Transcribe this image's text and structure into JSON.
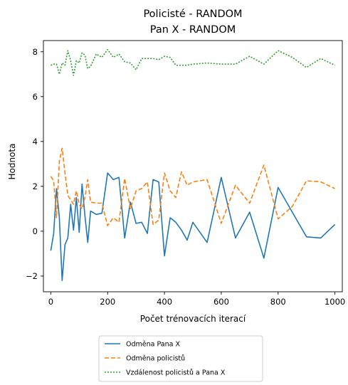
{
  "chart_data": {
    "type": "line",
    "title": "Policisté - RANDOM",
    "subtitle": "Pan X - RANDOM",
    "xlabel": "Počet trénovacích iterací",
    "ylabel": "Hodnota",
    "xlim": [
      -26,
      1026
    ],
    "ylim": [
      -2.7,
      8.5
    ],
    "xticks": [
      0,
      200,
      400,
      600,
      800,
      1000
    ],
    "xtick_labels": [
      "0",
      "200",
      "400",
      "600",
      "800",
      "1000"
    ],
    "yticks": [
      -2,
      0,
      2,
      4,
      6,
      8
    ],
    "ytick_labels": [
      "−2",
      "0",
      "2",
      "4",
      "6",
      "8"
    ],
    "grid": false,
    "legend_position": "below-center",
    "series": [
      {
        "name": "Odměna Pana X",
        "color": "#1f77b4",
        "dash": "solid",
        "x": [
          0,
          10,
          20,
          30,
          40,
          50,
          60,
          70,
          80,
          90,
          100,
          110,
          120,
          130,
          140,
          160,
          180,
          200,
          220,
          240,
          260,
          280,
          300,
          320,
          340,
          360,
          380,
          400,
          420,
          440,
          460,
          480,
          500,
          550,
          600,
          650,
          700,
          750,
          800,
          850,
          900,
          950,
          1000
        ],
        "y": [
          -0.87,
          -0.1,
          1.9,
          0.6,
          -2.2,
          -0.6,
          -0.3,
          1.2,
          0.05,
          1.5,
          -0.05,
          2.1,
          0.7,
          -0.5,
          0.9,
          0.75,
          0.8,
          2.6,
          2.3,
          2.4,
          -0.3,
          1.3,
          0.35,
          0.4,
          -0.1,
          2.3,
          2.2,
          -1.1,
          0.6,
          0.4,
          0.05,
          -0.4,
          0.4,
          -0.5,
          2.4,
          -0.3,
          0.85,
          -1.2,
          1.95,
          0.85,
          -0.25,
          -0.3,
          0.3
        ]
      },
      {
        "name": "Odměna policistů",
        "color": "#ff7f0e",
        "dash": "dashed",
        "x": [
          0,
          10,
          20,
          30,
          40,
          50,
          60,
          70,
          80,
          90,
          100,
          110,
          120,
          130,
          140,
          160,
          180,
          200,
          220,
          240,
          260,
          280,
          300,
          320,
          340,
          360,
          380,
          400,
          420,
          440,
          460,
          480,
          500,
          550,
          600,
          650,
          700,
          750,
          800,
          850,
          900,
          950,
          1000
        ],
        "y": [
          2.45,
          2.25,
          0.6,
          3.1,
          3.7,
          2.6,
          1.6,
          1.4,
          1.2,
          1.8,
          1.2,
          1.0,
          1.5,
          2.3,
          1.3,
          1.25,
          1.25,
          0.25,
          0.6,
          0.4,
          2.35,
          1.0,
          1.8,
          1.9,
          2.2,
          0.3,
          0.5,
          2.6,
          1.8,
          1.5,
          2.65,
          2.05,
          2.2,
          2.3,
          0.35,
          2.05,
          1.25,
          2.95,
          0.55,
          1.1,
          2.25,
          2.2,
          1.9
        ]
      },
      {
        "name": "Vzdálenost policistů a Pana X",
        "color": "#2ca02c",
        "dash": "dotted",
        "x": [
          0,
          10,
          20,
          30,
          40,
          50,
          60,
          70,
          80,
          90,
          100,
          110,
          120,
          130,
          140,
          160,
          180,
          200,
          220,
          240,
          260,
          280,
          300,
          320,
          340,
          360,
          380,
          400,
          420,
          440,
          460,
          480,
          500,
          550,
          600,
          650,
          700,
          750,
          800,
          850,
          900,
          950,
          1000
        ],
        "y": [
          7.4,
          7.45,
          7.45,
          7.0,
          7.5,
          7.4,
          8.05,
          7.6,
          6.95,
          7.6,
          7.5,
          7.95,
          7.85,
          7.25,
          7.35,
          7.9,
          7.75,
          8.1,
          7.75,
          7.9,
          7.55,
          7.5,
          7.2,
          7.7,
          7.7,
          7.7,
          7.65,
          7.8,
          7.75,
          7.4,
          7.4,
          7.4,
          7.45,
          7.5,
          7.45,
          7.45,
          7.8,
          7.45,
          8.05,
          7.75,
          7.3,
          7.7,
          7.4
        ]
      }
    ]
  }
}
